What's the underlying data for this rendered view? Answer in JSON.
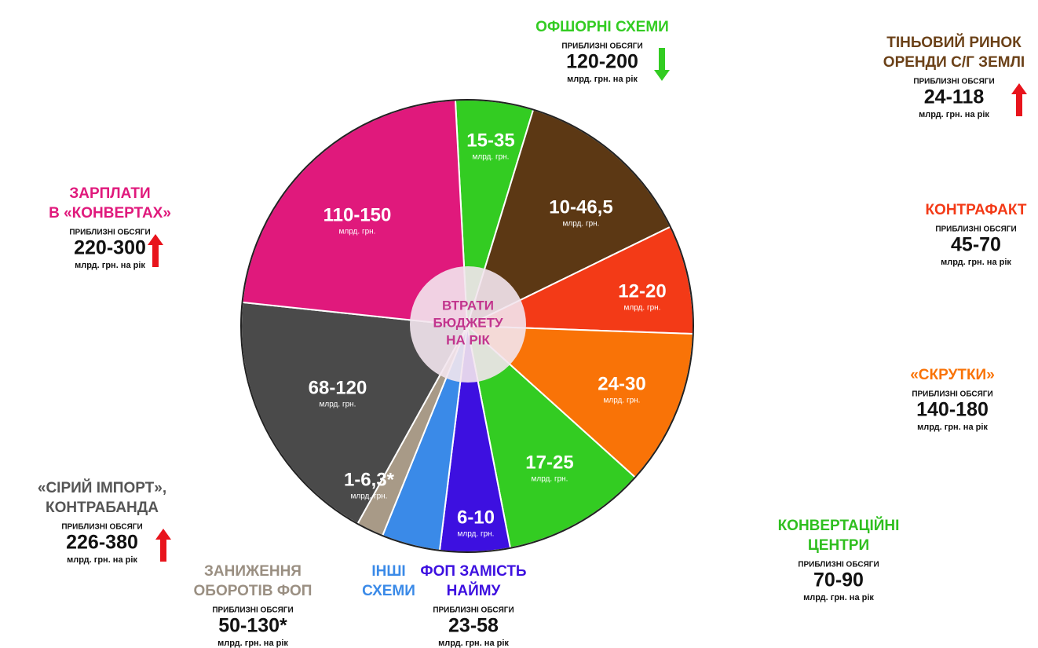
{
  "center": {
    "lines": [
      "ВТРАТИ",
      "БЮДЖЕТУ",
      "НА РІК"
    ]
  },
  "slices": [
    {
      "value": "15-35",
      "unit": "млрд. грн."
    },
    {
      "value": "10-46,5",
      "unit": "млрд. грн."
    },
    {
      "value": "12-20",
      "unit": "млрд. грн."
    },
    {
      "value": "24-30",
      "unit": "млрд. грн."
    },
    {
      "value": "17-25",
      "unit": "млрд. грн."
    },
    {
      "value": "6-10",
      "unit": "млрд. грн."
    },
    {
      "value": null,
      "unit": null
    },
    {
      "value": "1-6,3*",
      "unit": "млрд. грн."
    },
    {
      "value": "68-120",
      "unit": "млрд. грн."
    },
    {
      "value": "110-150",
      "unit": "млрд. грн."
    }
  ],
  "callouts": [
    {
      "title": [
        "ЗАРПЛАТИ",
        "В «КОНВЕРТАХ»"
      ],
      "caption": "ПРИБЛИЗНІ ОБСЯГИ",
      "value": "220-300",
      "unit": "млрд. грн. на рік",
      "trend": "up"
    },
    {
      "title": [
        "«СІРИЙ ІМПОРТ»,",
        "КОНТРАБАНДА"
      ],
      "caption": "ПРИБЛИЗНІ ОБСЯГИ",
      "value": "226-380",
      "unit": "млрд. грн. на рік",
      "trend": "up"
    },
    {
      "title": [
        "ЗАНИЖЕННЯ",
        "ОБОРОТІВ ФОП"
      ],
      "caption": "ПРИБЛИЗНІ ОБСЯГИ",
      "value": "50-130*",
      "unit": "млрд. грн. на рік"
    },
    {
      "title": [
        "ІНШІ",
        "СХЕМИ"
      ]
    },
    {
      "title": [
        "ФОП ЗАМІСТЬ",
        "НАЙМУ"
      ],
      "caption": "ПРИБЛИЗНІ ОБСЯГИ",
      "value": "23-58",
      "unit": "млрд. грн. на рік"
    },
    {
      "title": [
        "КОНВЕРТАЦІЙНІ",
        "ЦЕНТРИ"
      ],
      "caption": "ПРИБЛИЗНІ ОБСЯГИ",
      "value": "70-90",
      "unit": "млрд. грн. на рік"
    },
    {
      "title": [
        "«СКРУТКИ»"
      ],
      "caption": "ПРИБЛИЗНІ ОБСЯГИ",
      "value": "140-180",
      "unit": "млрд. грн. на рік"
    },
    {
      "title": [
        "КОНТРАФАКТ"
      ],
      "caption": "ПРИБЛИЗНІ ОБСЯГИ",
      "value": "45-70",
      "unit": "млрд. грн. на рік"
    },
    {
      "title": [
        "ТІНЬОВИЙ РИНОК",
        "ОРЕНДИ С/Г ЗЕМЛІ"
      ],
      "caption": "ПРИБЛИЗНІ ОБСЯГИ",
      "value": "24-118",
      "unit": "млрд. грн. на рік",
      "trend": "up"
    },
    {
      "title": [
        "ОФШОРНІ СХЕМИ"
      ],
      "caption": "ПРИБЛИЗНІ ОБСЯГИ",
      "value": "120-200",
      "unit": "млрд. грн. на рік",
      "trend": "down"
    }
  ]
}
